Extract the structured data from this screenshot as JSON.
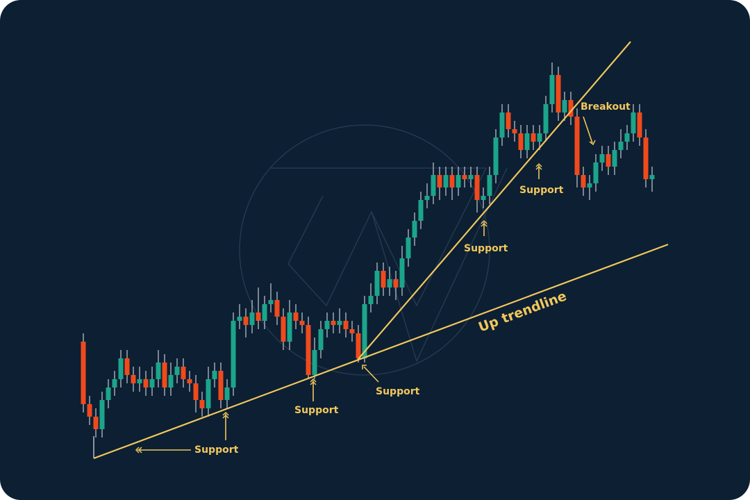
{
  "chart_data": {
    "type": "candlestick",
    "title": "",
    "xlabel": "",
    "ylabel": "",
    "axes_visible": false,
    "grid": false,
    "colors": {
      "background": "#0c1f33",
      "up": "#1ba58b",
      "down": "#f04a1c",
      "annotation": "#f2c75c",
      "wick": "#b8bec6"
    },
    "candles_ohlc": [
      [
        33,
        35,
        16,
        18
      ],
      [
        18,
        20,
        13,
        15
      ],
      [
        15,
        17,
        10,
        12
      ],
      [
        12,
        21,
        10,
        19
      ],
      [
        19,
        24,
        17,
        22
      ],
      [
        22,
        26,
        20,
        24
      ],
      [
        24,
        31,
        22,
        29
      ],
      [
        29,
        31,
        23,
        25
      ],
      [
        25,
        27,
        21,
        23
      ],
      [
        23,
        27,
        21,
        24
      ],
      [
        24,
        26,
        20,
        22
      ],
      [
        22,
        27,
        20,
        24
      ],
      [
        24,
        31,
        22,
        28
      ],
      [
        28,
        30,
        20,
        22
      ],
      [
        22,
        28,
        20,
        25
      ],
      [
        25,
        29,
        23,
        27
      ],
      [
        27,
        29,
        22,
        24
      ],
      [
        24,
        26,
        21,
        23
      ],
      [
        23,
        25,
        16,
        19
      ],
      [
        19,
        21,
        15,
        17
      ],
      [
        17,
        27,
        15,
        24
      ],
      [
        24,
        28,
        22,
        26
      ],
      [
        26,
        28,
        17,
        19
      ],
      [
        19,
        24,
        17,
        22
      ],
      [
        22,
        40,
        20,
        38
      ],
      [
        38,
        42,
        36,
        39
      ],
      [
        39,
        41,
        34,
        37
      ],
      [
        37,
        43,
        35,
        40
      ],
      [
        40,
        46,
        36,
        38
      ],
      [
        38,
        44,
        36,
        42
      ],
      [
        42,
        47,
        40,
        43
      ],
      [
        43,
        45,
        37,
        39
      ],
      [
        39,
        41,
        31,
        33
      ],
      [
        33,
        43,
        31,
        40
      ],
      [
        40,
        42,
        36,
        38
      ],
      [
        38,
        40,
        35,
        37
      ],
      [
        37,
        39,
        24,
        25
      ],
      [
        25,
        34,
        24,
        31
      ],
      [
        31,
        38,
        29,
        36
      ],
      [
        36,
        40,
        34,
        38
      ],
      [
        38,
        40,
        35,
        37
      ],
      [
        37,
        41,
        35,
        38
      ],
      [
        38,
        40,
        34,
        36
      ],
      [
        36,
        38,
        33,
        35
      ],
      [
        35,
        37,
        28,
        29
      ],
      [
        29,
        44,
        28,
        42
      ],
      [
        42,
        47,
        40,
        44
      ],
      [
        44,
        52,
        42,
        50
      ],
      [
        50,
        52,
        44,
        46
      ],
      [
        46,
        51,
        44,
        48
      ],
      [
        48,
        50,
        43,
        46
      ],
      [
        46,
        56,
        44,
        53
      ],
      [
        53,
        60,
        51,
        58
      ],
      [
        58,
        64,
        56,
        62
      ],
      [
        62,
        69,
        60,
        67
      ],
      [
        67,
        71,
        65,
        68
      ],
      [
        68,
        76,
        66,
        73
      ],
      [
        73,
        75,
        67,
        70
      ],
      [
        70,
        75,
        68,
        73
      ],
      [
        73,
        75,
        67,
        70
      ],
      [
        70,
        75,
        68,
        73
      ],
      [
        73,
        75,
        70,
        72
      ],
      [
        72,
        75,
        70,
        73
      ],
      [
        73,
        75,
        64,
        67
      ],
      [
        67,
        70,
        65,
        68
      ],
      [
        68,
        75,
        66,
        73
      ],
      [
        73,
        84,
        71,
        82
      ],
      [
        82,
        90,
        80,
        88
      ],
      [
        88,
        90,
        82,
        84
      ],
      [
        84,
        86,
        81,
        83
      ],
      [
        83,
        85,
        77,
        79
      ],
      [
        79,
        85,
        77,
        83
      ],
      [
        83,
        85,
        79,
        81
      ],
      [
        81,
        85,
        79,
        83
      ],
      [
        83,
        92,
        81,
        90
      ],
      [
        90,
        100,
        88,
        97
      ],
      [
        97,
        99,
        86,
        88
      ],
      [
        88,
        93,
        86,
        91
      ],
      [
        91,
        93,
        85,
        87
      ],
      [
        87,
        89,
        70,
        73
      ],
      [
        73,
        75,
        68,
        70
      ],
      [
        70,
        73,
        67,
        71
      ],
      [
        71,
        78,
        69,
        76
      ],
      [
        76,
        80,
        74,
        78
      ],
      [
        78,
        80,
        73,
        75
      ],
      [
        75,
        81,
        73,
        79
      ],
      [
        79,
        84,
        77,
        81
      ],
      [
        81,
        85,
        79,
        83
      ],
      [
        83,
        90,
        81,
        88
      ],
      [
        88,
        90,
        80,
        82
      ],
      [
        82,
        84,
        70,
        72
      ],
      [
        72,
        75,
        69,
        73
      ]
    ],
    "annotations": {
      "trendline_label": "Up trendline",
      "support_1": "Support",
      "support_2": "Support",
      "support_3": "Support",
      "support_4": "Support",
      "support_5": "Support",
      "breakout": "Breakout"
    }
  }
}
